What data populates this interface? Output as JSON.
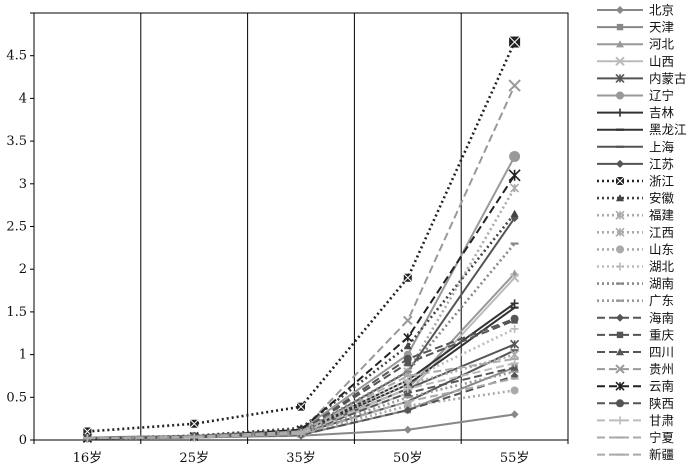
{
  "chart_data": {
    "type": "line",
    "categories": [
      "16岁",
      "25岁",
      "35岁",
      "50岁",
      "55岁"
    ],
    "ylim": [
      0,
      5
    ],
    "yticks": [
      0,
      0.5,
      1,
      1.5,
      2,
      2.5,
      3,
      3.5,
      4,
      4.5,
      5
    ],
    "ytick_labels": [
      "0",
      "0.5",
      "1",
      "1.5",
      "2",
      "2.5",
      "3",
      "3.5",
      "4",
      "4.5",
      ""
    ],
    "vertical_grid": true,
    "legend_position": "right",
    "series": [
      {
        "name": "北京",
        "values": [
          0.02,
          0.03,
          0.05,
          0.12,
          0.3
        ],
        "color": "#888888",
        "dash": "solid",
        "marker": "diamond"
      },
      {
        "name": "天津",
        "values": [
          0.02,
          0.03,
          0.06,
          0.35,
          0.85
        ],
        "color": "#888888",
        "dash": "solid",
        "marker": "square"
      },
      {
        "name": "河北",
        "values": [
          0.02,
          0.04,
          0.08,
          0.6,
          1.95
        ],
        "color": "#999999",
        "dash": "solid",
        "marker": "triangle"
      },
      {
        "name": "山西",
        "values": [
          0.02,
          0.04,
          0.08,
          0.55,
          1.9
        ],
        "color": "#bbbbbb",
        "dash": "solid",
        "marker": "x"
      },
      {
        "name": "内蒙古",
        "values": [
          0.02,
          0.04,
          0.09,
          0.6,
          1.12
        ],
        "color": "#555555",
        "dash": "solid",
        "marker": "star"
      },
      {
        "name": "辽宁",
        "values": [
          0.03,
          0.05,
          0.12,
          1.0,
          3.32
        ],
        "color": "#999999",
        "dash": "solid",
        "marker": "circle"
      },
      {
        "name": "吉林",
        "values": [
          0.02,
          0.04,
          0.1,
          0.7,
          1.6
        ],
        "color": "#333333",
        "dash": "solid",
        "marker": "plus"
      },
      {
        "name": "黑龙江",
        "values": [
          0.02,
          0.04,
          0.1,
          0.65,
          1.55
        ],
        "color": "#333333",
        "dash": "solid",
        "marker": "dash"
      },
      {
        "name": "上海",
        "values": [
          0.02,
          0.03,
          0.08,
          0.45,
          1.05
        ],
        "color": "#555555",
        "dash": "solid",
        "marker": "dash"
      },
      {
        "name": "江苏",
        "values": [
          0.02,
          0.04,
          0.09,
          0.8,
          2.6
        ],
        "color": "#555555",
        "dash": "solid",
        "marker": "diamond"
      },
      {
        "name": "浙江",
        "values": [
          0.1,
          0.19,
          0.39,
          1.9,
          4.66
        ],
        "color": "#222222",
        "dash": "dotted",
        "marker": "xsquare"
      },
      {
        "name": "安徽",
        "values": [
          0.02,
          0.05,
          0.14,
          1.1,
          2.65
        ],
        "color": "#444444",
        "dash": "dotted",
        "marker": "triangle"
      },
      {
        "name": "福建",
        "values": [
          0.02,
          0.04,
          0.1,
          0.8,
          2.95
        ],
        "color": "#aaaaaa",
        "dash": "dotted",
        "marker": "star"
      },
      {
        "name": "江西",
        "values": [
          0.02,
          0.04,
          0.09,
          0.65,
          1.0
        ],
        "color": "#aaaaaa",
        "dash": "dotted",
        "marker": "star"
      },
      {
        "name": "山东",
        "values": [
          0.02,
          0.03,
          0.07,
          0.4,
          0.58
        ],
        "color": "#aaaaaa",
        "dash": "dotted",
        "marker": "circle"
      },
      {
        "name": "湖北",
        "values": [
          0.02,
          0.04,
          0.1,
          0.7,
          1.3
        ],
        "color": "#bbbbbb",
        "dash": "dotted",
        "marker": "plus"
      },
      {
        "name": "湖南",
        "values": [
          0.02,
          0.04,
          0.1,
          0.8,
          2.3
        ],
        "color": "#888888",
        "dash": "dotted",
        "marker": "dash"
      },
      {
        "name": "广东",
        "values": [
          0.02,
          0.03,
          0.08,
          0.5,
          0.8
        ],
        "color": "#999999",
        "dash": "dotted",
        "marker": "dash"
      },
      {
        "name": "海南",
        "values": [
          0.02,
          0.03,
          0.06,
          0.35,
          0.75
        ],
        "color": "#555555",
        "dash": "dashed",
        "marker": "diamond"
      },
      {
        "name": "重庆",
        "values": [
          0.02,
          0.04,
          0.1,
          0.9,
          1.4
        ],
        "color": "#555555",
        "dash": "dashed",
        "marker": "square"
      },
      {
        "name": "四川",
        "values": [
          0.02,
          0.03,
          0.08,
          0.55,
          0.85
        ],
        "color": "#555555",
        "dash": "dashed",
        "marker": "triangle"
      },
      {
        "name": "贵州",
        "values": [
          0.02,
          0.04,
          0.1,
          1.4,
          4.15
        ],
        "color": "#999999",
        "dash": "dashed",
        "marker": "x"
      },
      {
        "name": "云南",
        "values": [
          0.02,
          0.04,
          0.12,
          1.2,
          3.1
        ],
        "color": "#222222",
        "dash": "dashed",
        "marker": "star"
      },
      {
        "name": "陕西",
        "values": [
          0.02,
          0.04,
          0.1,
          0.95,
          1.42
        ],
        "color": "#555555",
        "dash": "dashed",
        "marker": "circle"
      },
      {
        "name": "甘肃",
        "values": [
          0.02,
          0.03,
          0.08,
          0.6,
          0.9
        ],
        "color": "#bbbbbb",
        "dash": "dashed",
        "marker": "plus"
      },
      {
        "name": "宁夏",
        "values": [
          0.02,
          0.03,
          0.07,
          0.45,
          0.72
        ],
        "color": "#aaaaaa",
        "dash": "dashed",
        "marker": "dash"
      },
      {
        "name": "新疆",
        "values": [
          0.02,
          0.04,
          0.1,
          0.75,
          0.95
        ],
        "color": "#aaaaaa",
        "dash": "dashed",
        "marker": "dash"
      }
    ]
  }
}
